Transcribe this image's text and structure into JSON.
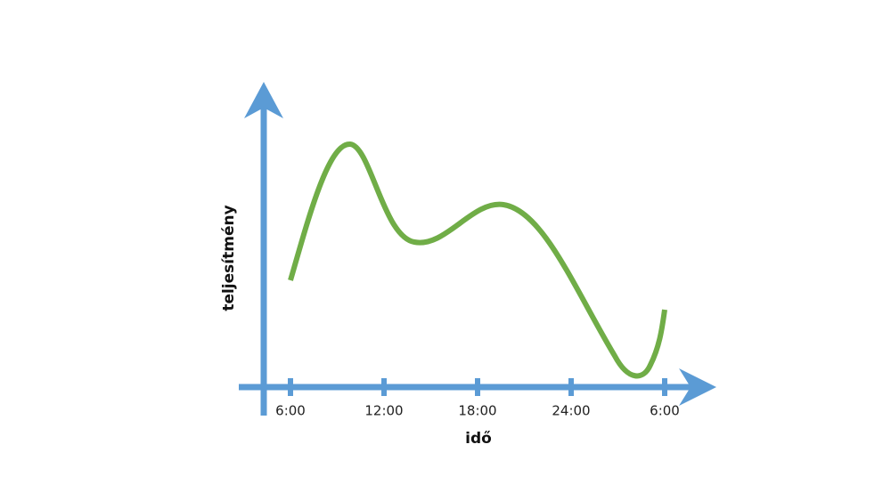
{
  "axes": {
    "y_label": "teljesítmény",
    "x_label": "idő",
    "ticks": [
      "6:00",
      "12:00",
      "18:00",
      "24:00",
      "6:00"
    ]
  }
}
